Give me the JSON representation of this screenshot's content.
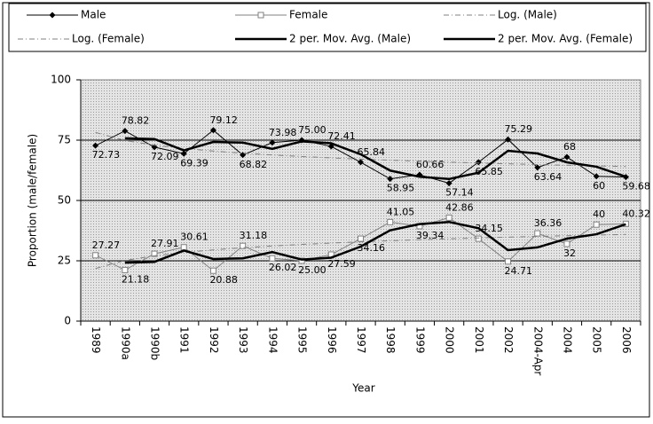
{
  "chart_data": {
    "type": "line",
    "y_label": "Proportion (male/female)",
    "x_label": "Year",
    "categories": [
      "1989",
      "1990a",
      "1990b",
      "1991",
      "1992",
      "1993",
      "1994",
      "1995",
      "1996",
      "1997",
      "1998",
      "1999",
      "2000",
      "2001",
      "2002",
      "2004-Apr",
      "2004",
      "2005",
      "2006"
    ],
    "series": [
      {
        "name": "Male",
        "color": "#000000",
        "marker": "diamond",
        "line_style": "solid",
        "width": 1,
        "data_labels": true,
        "values": [
          72.73,
          78.82,
          72.09,
          69.39,
          79.12,
          68.82,
          73.98,
          75.0,
          72.41,
          65.84,
          58.95,
          60.66,
          57.14,
          65.85,
          75.29,
          63.64,
          68,
          60,
          59.68
        ],
        "value_labels": [
          "72.73",
          "78.82",
          "72.09",
          "69.39",
          "79.12",
          "68.82",
          "73.98",
          "75.00",
          "72.41",
          "65.84",
          "58.95",
          "60.66",
          "57.14",
          "65.85",
          "75.29",
          "63.64",
          "68",
          "60",
          "59.68"
        ]
      },
      {
        "name": "Female",
        "color": "#808080",
        "marker": "square",
        "line_style": "solid",
        "width": 1,
        "data_labels": true,
        "values": [
          27.27,
          21.18,
          27.91,
          30.61,
          20.88,
          31.18,
          26.02,
          25.0,
          27.59,
          34.16,
          41.05,
          39.34,
          42.86,
          34.15,
          24.71,
          36.36,
          32,
          40,
          40.32
        ],
        "value_labels": [
          "27.27",
          "21.18",
          "27.91",
          "30.61",
          "20.88",
          "31.18",
          "26.02",
          "25.00",
          "27.59",
          "34.16",
          "41.05",
          "39.34",
          "42.86",
          "34.15",
          "24.71",
          "36.36",
          "32",
          "40",
          "40.32"
        ]
      },
      {
        "name": "Log. (Male)",
        "color": "#808080",
        "marker": "none",
        "line_style": "dashdot",
        "width": 1,
        "values": [
          78.2,
          74.87,
          72.93,
          71.55,
          70.48,
          69.6,
          68.86,
          68.22,
          67.65,
          67.15,
          66.69,
          66.27,
          65.89,
          65.53,
          65.2,
          64.89,
          64.6,
          64.33,
          64.07
        ]
      },
      {
        "name": "Log. (Female)",
        "color": "#808080",
        "marker": "none",
        "line_style": "dashdot",
        "width": 1,
        "values": [
          21.8,
          25.13,
          27.07,
          28.45,
          29.52,
          30.4,
          31.14,
          31.78,
          32.35,
          32.85,
          33.31,
          33.73,
          34.11,
          34.47,
          34.8,
          35.11,
          35.4,
          35.67,
          35.93
        ]
      },
      {
        "name": "2 per. Mov. Avg. (Male)",
        "color": "#000000",
        "marker": "none",
        "line_style": "solid",
        "width": 2.5,
        "values": [
          null,
          75.78,
          75.46,
          70.74,
          74.26,
          73.97,
          71.4,
          74.49,
          73.71,
          69.13,
          62.4,
          59.81,
          58.9,
          61.5,
          70.57,
          69.47,
          65.82,
          64,
          59.84
        ]
      },
      {
        "name": "2 per. Mov. Avg. (Female)",
        "color": "#000000",
        "marker": "none",
        "line_style": "solid",
        "width": 2.5,
        "values": [
          null,
          24.23,
          24.55,
          29.26,
          25.75,
          26.03,
          28.6,
          25.51,
          26.3,
          30.88,
          37.61,
          40.2,
          41.1,
          38.51,
          29.43,
          30.54,
          34.18,
          36,
          40.16
        ]
      }
    ],
    "ylim": [
      0,
      100
    ],
    "yticks": [
      0,
      25,
      50,
      75,
      100
    ],
    "grid": true,
    "legend": "top"
  }
}
